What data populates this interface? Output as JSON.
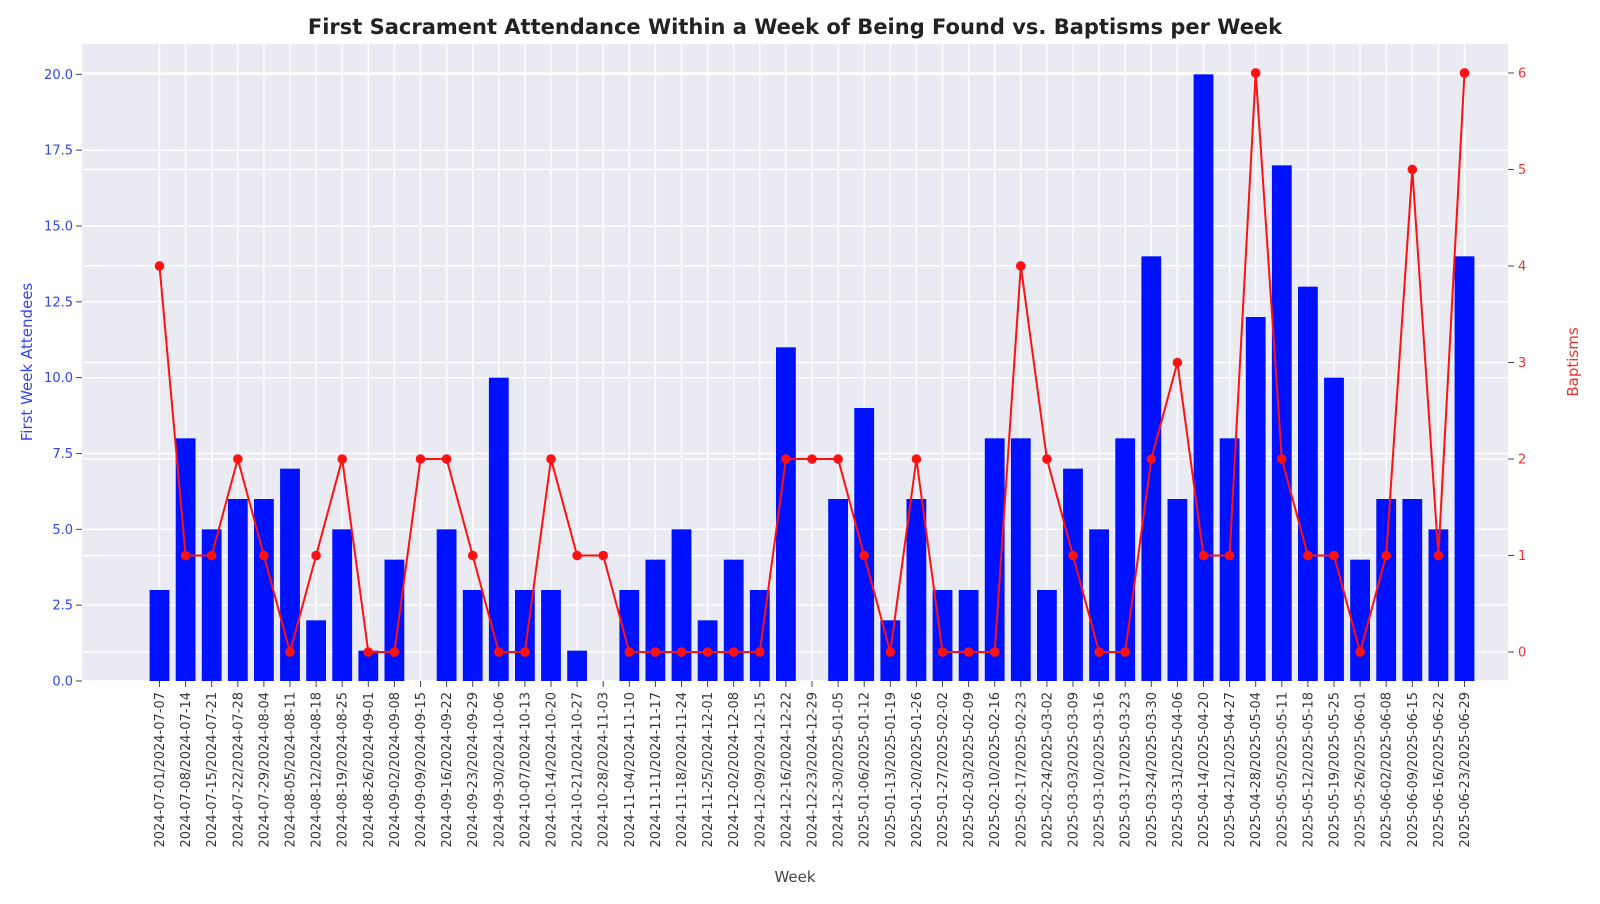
{
  "chart_data": {
    "type": "bar",
    "title": "First Sacrament Attendance Within a Week of Being Found vs. Baptisms per Week",
    "xlabel": "Week",
    "ylabel_left": "First Week Attendees",
    "ylabel_right": "Baptisms",
    "ylim_left": [
      0,
      21
    ],
    "ylim_right": [
      -0.3,
      6.3
    ],
    "yticks_left": [
      "0.0",
      "2.5",
      "5.0",
      "7.5",
      "10.0",
      "12.5",
      "15.0",
      "17.5",
      "20.0"
    ],
    "yticks_right": [
      "0",
      "1",
      "2",
      "3",
      "4",
      "5",
      "6"
    ],
    "grid": true,
    "colors": {
      "bars": "#0011ff",
      "line": "#ff1111",
      "left_axis": "#3344ee",
      "right_axis": "#ee3333",
      "plot_bg": "#eaeaf2",
      "grid": "#ffffff"
    },
    "categories": [
      "2024-07-01/2024-07-07",
      "2024-07-08/2024-07-14",
      "2024-07-15/2024-07-21",
      "2024-07-22/2024-07-28",
      "2024-07-29/2024-08-04",
      "2024-08-05/2024-08-11",
      "2024-08-12/2024-08-18",
      "2024-08-19/2024-08-25",
      "2024-08-26/2024-09-01",
      "2024-09-02/2024-09-08",
      "2024-09-09/2024-09-15",
      "2024-09-16/2024-09-22",
      "2024-09-23/2024-09-29",
      "2024-09-30/2024-10-06",
      "2024-10-07/2024-10-13",
      "2024-10-14/2024-10-20",
      "2024-10-21/2024-10-27",
      "2024-10-28/2024-11-03",
      "2024-11-04/2024-11-10",
      "2024-11-11/2024-11-17",
      "2024-11-18/2024-11-24",
      "2024-11-25/2024-12-01",
      "2024-12-02/2024-12-08",
      "2024-12-09/2024-12-15",
      "2024-12-16/2024-12-22",
      "2024-12-23/2024-12-29",
      "2024-12-30/2025-01-05",
      "2025-01-06/2025-01-12",
      "2025-01-13/2025-01-19",
      "2025-01-20/2025-01-26",
      "2025-01-27/2025-02-02",
      "2025-02-03/2025-02-09",
      "2025-02-10/2025-02-16",
      "2025-02-17/2025-02-23",
      "2025-02-24/2025-03-02",
      "2025-03-03/2025-03-09",
      "2025-03-10/2025-03-16",
      "2025-03-17/2025-03-23",
      "2025-03-24/2025-03-30",
      "2025-03-31/2025-04-06",
      "2025-04-14/2025-04-20",
      "2025-04-21/2025-04-27",
      "2025-04-28/2025-05-04",
      "2025-05-05/2025-05-11",
      "2025-05-12/2025-05-18",
      "2025-05-19/2025-05-25",
      "2025-05-26/2025-06-01",
      "2025-06-02/2025-06-08",
      "2025-06-09/2025-06-15",
      "2025-06-16/2025-06-22",
      "2025-06-23/2025-06-29"
    ],
    "series": [
      {
        "name": "First Week Attendees",
        "type": "bar",
        "axis": "left",
        "values": [
          3,
          8,
          5,
          6,
          6,
          7,
          2,
          5,
          1,
          4,
          0,
          5,
          3,
          10,
          3,
          3,
          1,
          0,
          3,
          4,
          5,
          2,
          4,
          3,
          11,
          0,
          6,
          9,
          2,
          6,
          3,
          3,
          8,
          8,
          3,
          7,
          5,
          8,
          14,
          6,
          20,
          8,
          12,
          17,
          13,
          10,
          4,
          6,
          6,
          5,
          14
        ]
      },
      {
        "name": "Baptisms",
        "type": "line",
        "axis": "right",
        "values": [
          4,
          1,
          1,
          2,
          1,
          0,
          1,
          2,
          0,
          0,
          2,
          2,
          1,
          0,
          0,
          2,
          1,
          1,
          0,
          0,
          0,
          0,
          0,
          0,
          2,
          2,
          2,
          1,
          0,
          2,
          0,
          0,
          0,
          4,
          2,
          1,
          0,
          0,
          2,
          3,
          1,
          1,
          6,
          2,
          1,
          1,
          0,
          1,
          5,
          1,
          6
        ]
      }
    ]
  }
}
